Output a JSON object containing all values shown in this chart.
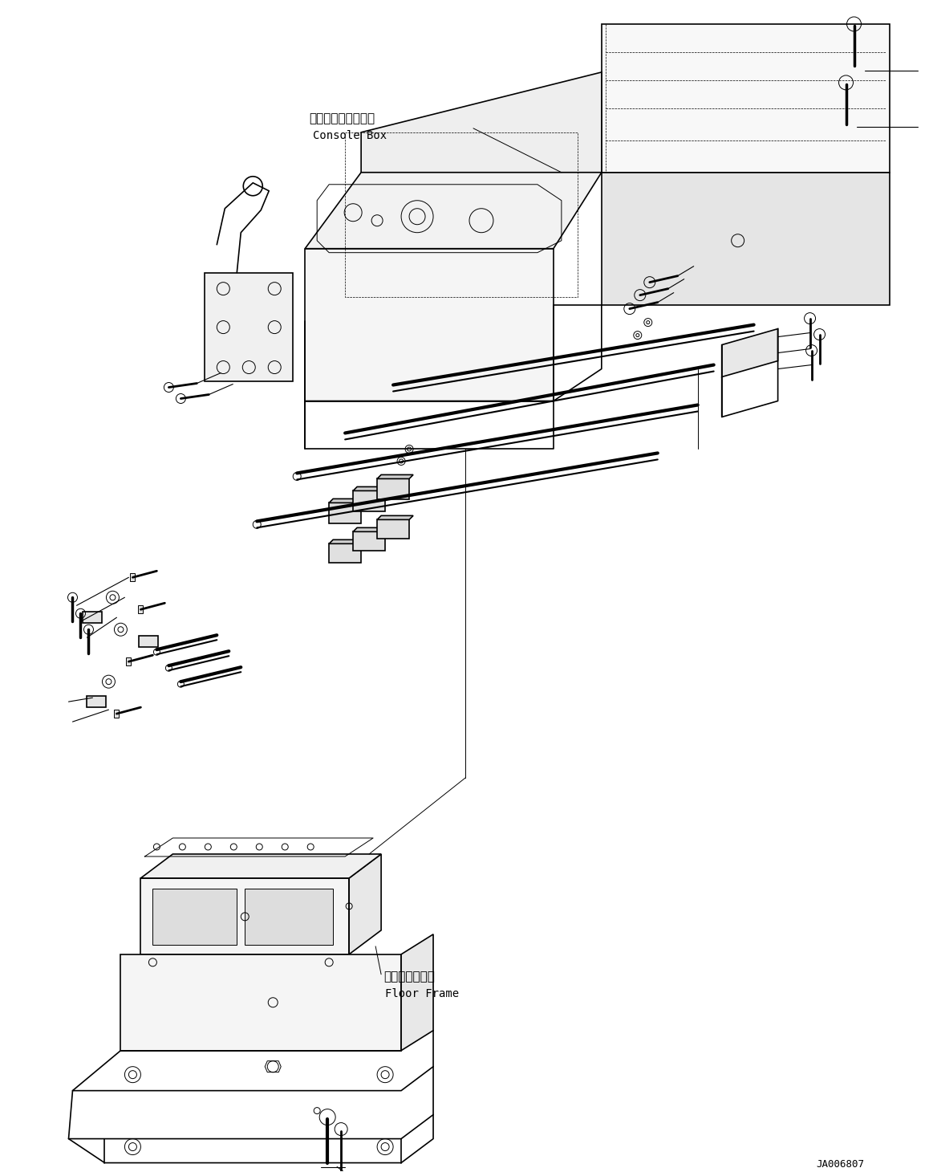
{
  "title": "",
  "background_color": "#ffffff",
  "line_color": "#000000",
  "fig_width": 11.63,
  "fig_height": 14.6,
  "dpi": 100,
  "label_console_box_jp": "コンソールボックス",
  "label_console_box_en": "Console Box",
  "label_floor_frame_jp": "フロアフレーム",
  "label_floor_frame_en": "Floor Frame",
  "label_code": "JA006807",
  "font_size_label": 10,
  "font_size_code": 9,
  "font_family": "monospace"
}
